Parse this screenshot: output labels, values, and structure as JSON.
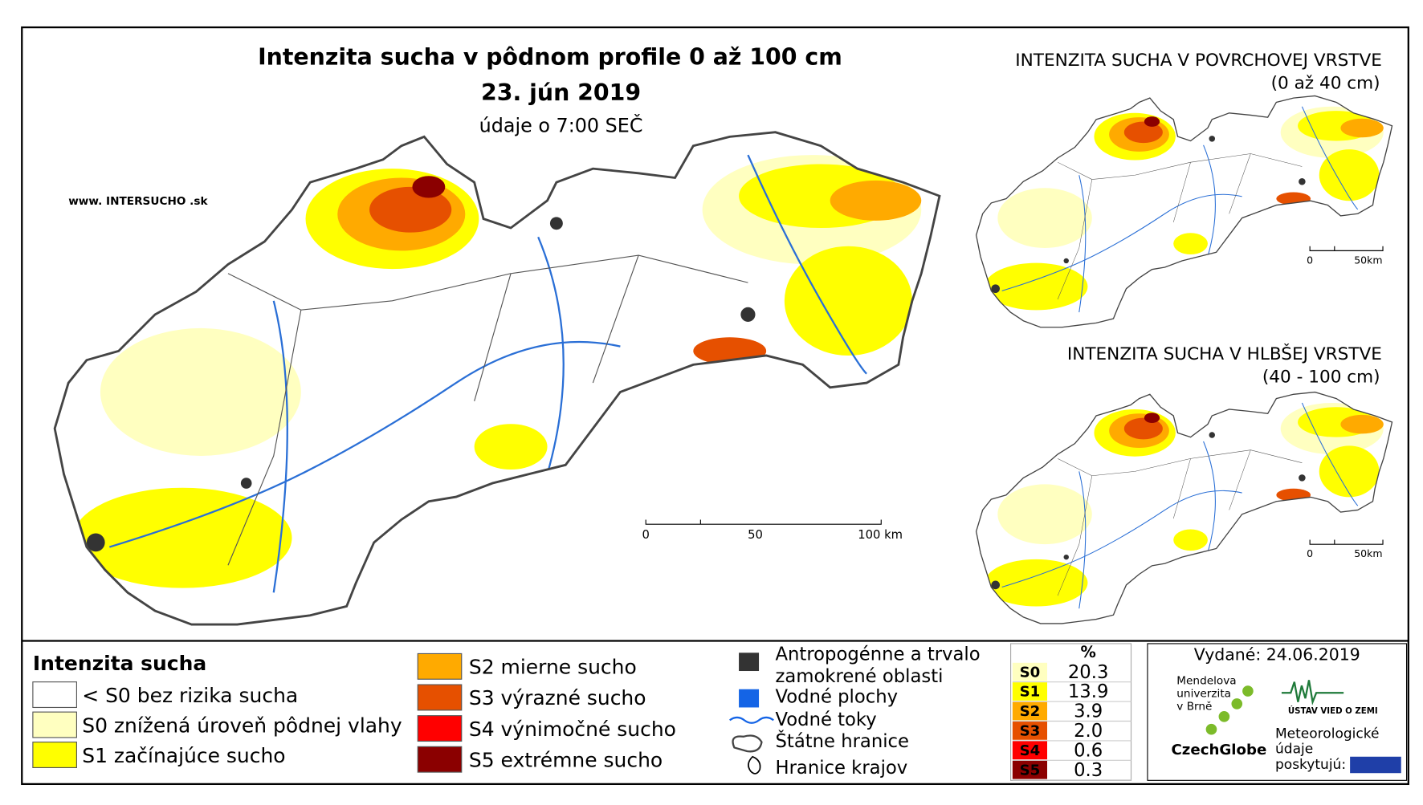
{
  "header": {
    "title": "Intenzita sucha v pôdnom profile 0 až 100 cm",
    "date": "23. jún 2019",
    "time": "údaje o 7:00 SEČ",
    "website": "www. INTERSUCHO .sk"
  },
  "main_scale": [
    "0",
    "50",
    "100 km"
  ],
  "insets": [
    {
      "title": "INTENZITA SUCHA V POVRCHOVEJ VRSTVE",
      "subtitle": "(0 až 40 cm)",
      "scale": [
        "0",
        "50km"
      ]
    },
    {
      "title": "INTENZITA SUCHA V HLBŠEJ VRSTVE",
      "subtitle": "(40 - 100 cm)",
      "scale": [
        "0",
        "50km"
      ]
    }
  ],
  "legend": {
    "title": "Intenzita sucha",
    "items": [
      {
        "label": "< S0 bez rizika sucha",
        "color": "#ffffff"
      },
      {
        "label": "S0 znížená úroveň pôdnej vlahy",
        "color": "#ffffc0"
      },
      {
        "label": "S1 začínajúce sucho",
        "color": "#ffff00"
      },
      {
        "label": "S2 mierne sucho",
        "color": "#ffaa00"
      },
      {
        "label": "S3 výrazné sucho",
        "color": "#e65000"
      },
      {
        "label": "S4 výnimočné sucho",
        "color": "#ff0000"
      },
      {
        "label": "S5 extrémne sucho",
        "color": "#8b0000"
      }
    ]
  },
  "symbols": [
    "Antropogénne a trvalo zamokrené oblasti",
    "Vodné plochy",
    "Vodné toky",
    "Štátne hranice",
    "Hranice krajov"
  ],
  "table": {
    "header": "%",
    "rows": [
      {
        "class": "S0",
        "percent": "20.3",
        "color": "#ffffc0"
      },
      {
        "class": "S1",
        "percent": "13.9",
        "color": "#ffff00"
      },
      {
        "class": "S2",
        "percent": "3.9",
        "color": "#ffaa00"
      },
      {
        "class": "S3",
        "percent": "2.0",
        "color": "#e65000"
      },
      {
        "class": "S4",
        "percent": "0.6",
        "color": "#ff0000"
      },
      {
        "class": "S5",
        "percent": "0.3",
        "color": "#8b0000"
      }
    ]
  },
  "issued": "Vydané: 24.06.2019",
  "logos": {
    "mendel": [
      "Mendelova",
      "univerzita",
      "v Brně"
    ],
    "czechglobe": "CzechGlobe",
    "ustav": "ÚSTAV VIED O ZEMI",
    "meteo": [
      "Meteorologické",
      "údaje",
      "poskytujú:"
    ]
  }
}
